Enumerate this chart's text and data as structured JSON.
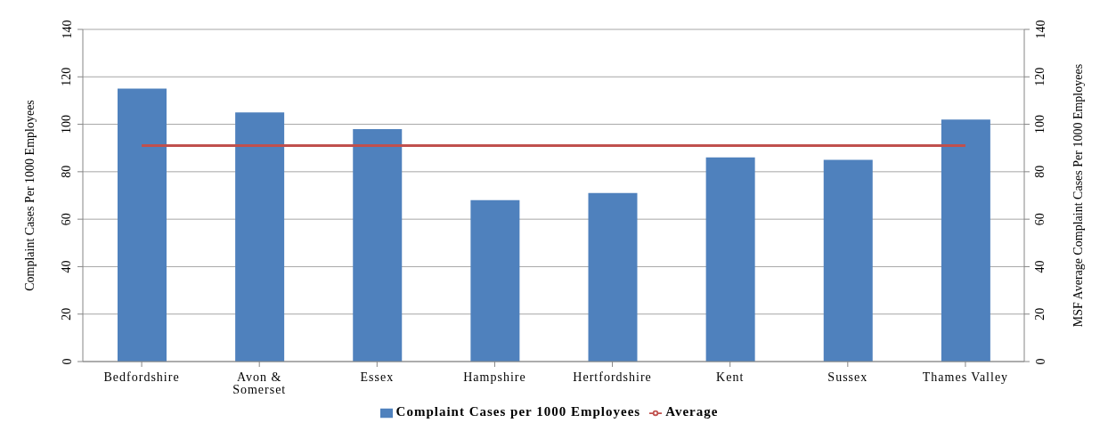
{
  "chart_data": {
    "type": "bar",
    "categories": [
      "Bedfordshire",
      "Avon & Somerset",
      "Essex",
      "Hampshire",
      "Hertfordshire",
      "Kent",
      "Sussex",
      "Thames Valley"
    ],
    "series": [
      {
        "name": "Complaint Cases per 1000 Employees",
        "color": "#4f81bd",
        "values": [
          115,
          105,
          98,
          68,
          71,
          86,
          85,
          102
        ]
      },
      {
        "name": "Average",
        "type": "line",
        "axis": "y2",
        "color": "#c0504d",
        "values": [
          91,
          91,
          91,
          91,
          91,
          91,
          91,
          91
        ]
      }
    ],
    "ylabel": "Complaint Cases Per 1000 Employees",
    "y2label": "MSF Average Complaint Cases Per 1000 Employees",
    "ylim": [
      0,
      140
    ],
    "yticks": [
      0,
      20,
      40,
      60,
      80,
      100,
      120,
      140
    ],
    "y2lim": [
      0,
      140
    ],
    "y2ticks": [
      0,
      20,
      40,
      60,
      80,
      100,
      120,
      140
    ],
    "grid": "y",
    "legend": "bottom",
    "marker": "none"
  }
}
